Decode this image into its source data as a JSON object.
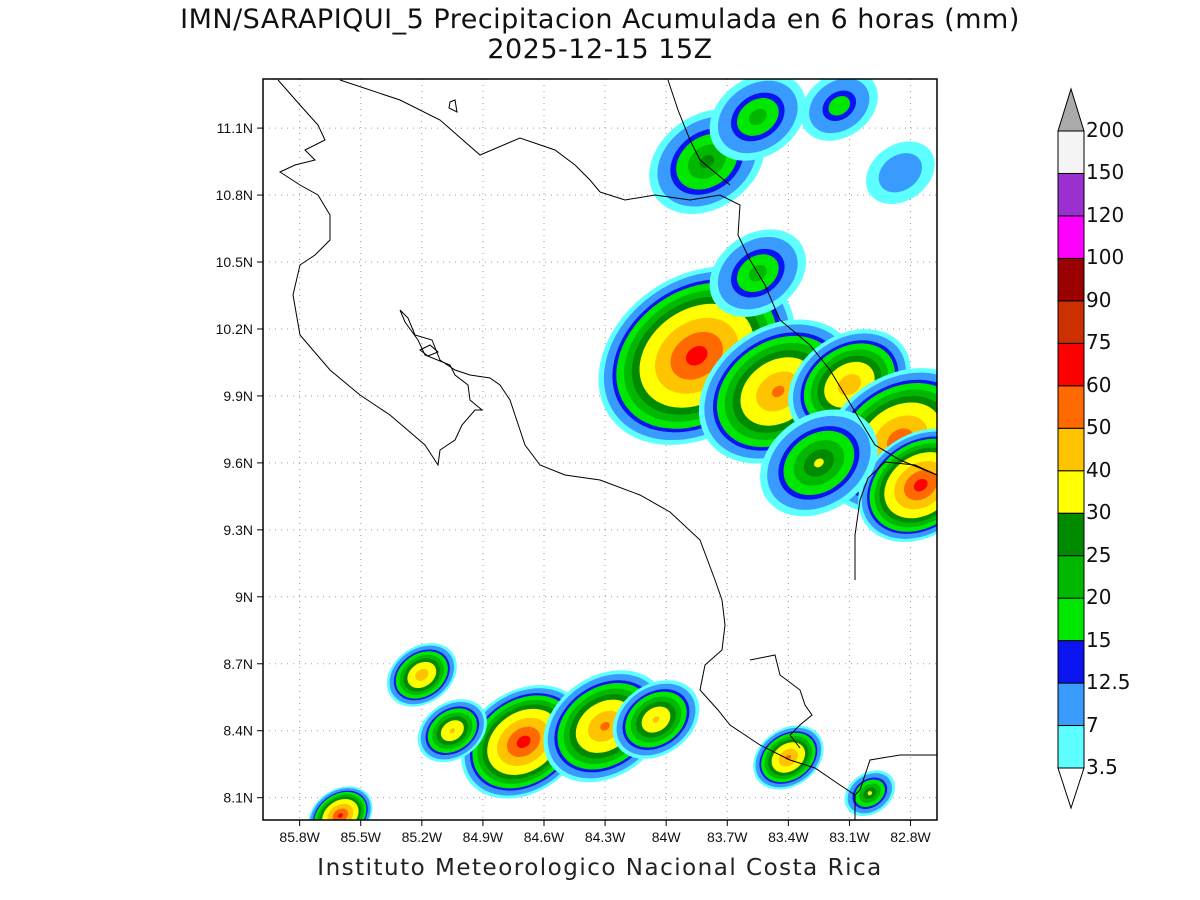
{
  "title": {
    "line1": "IMN/SARAPIQUI_5 Precipitacion Acumulada en 6 horas (mm)",
    "line2": "2025-12-15 15Z"
  },
  "footer": "Instituto Meteorologico Nacional Costa Rica",
  "map": {
    "lon_range": [
      -85.98,
      -82.67
    ],
    "lat_range": [
      8.0,
      11.32
    ],
    "x_ticks": [
      "85.8W",
      "85.5W",
      "85.2W",
      "84.9W",
      "84.6W",
      "84.3W",
      "84W",
      "83.7W",
      "83.4W",
      "83.1W",
      "82.8W"
    ],
    "x_tick_values": [
      -85.8,
      -85.5,
      -85.2,
      -84.9,
      -84.6,
      -84.3,
      -84.0,
      -83.7,
      -83.4,
      -83.1,
      -82.8
    ],
    "y_ticks": [
      "8.1N",
      "8.4N",
      "8.7N",
      "9N",
      "9.3N",
      "9.6N",
      "9.9N",
      "10.2N",
      "10.5N",
      "10.8N",
      "11.1N"
    ],
    "y_tick_values": [
      8.1,
      8.4,
      8.7,
      9.0,
      9.3,
      9.6,
      9.9,
      10.2,
      10.5,
      10.8,
      11.1
    ],
    "grid": true
  },
  "colorbar": {
    "levels": [
      "3.5",
      "7",
      "12.5",
      "15",
      "20",
      "25",
      "30",
      "40",
      "50",
      "60",
      "75",
      "90",
      "100",
      "120",
      "150",
      "200"
    ],
    "colors": [
      "#5effff",
      "#3a9bff",
      "#0a14f0",
      "#00e800",
      "#00b800",
      "#008a00",
      "#ffff00",
      "#ffc400",
      "#ff6a00",
      "#ff0000",
      "#cc3000",
      "#9a0000",
      "#ff00ff",
      "#9a30d0",
      "#f4f4f4"
    ],
    "over_color": "#aaaaaa",
    "under_color": "#ffffff"
  },
  "rain_cells": [
    {
      "lon": -83.85,
      "lat": 10.08,
      "r": 0.55,
      "peak": 62
    },
    {
      "lon": -83.45,
      "lat": 9.92,
      "r": 0.45,
      "peak": 50
    },
    {
      "lon": -83.1,
      "lat": 9.95,
      "r": 0.35,
      "peak": 45
    },
    {
      "lon": -82.85,
      "lat": 9.7,
      "r": 0.45,
      "peak": 55
    },
    {
      "lon": -82.75,
      "lat": 9.5,
      "r": 0.35,
      "peak": 62
    },
    {
      "lon": -83.25,
      "lat": 9.6,
      "r": 0.35,
      "peak": 30
    },
    {
      "lon": -83.55,
      "lat": 10.45,
      "r": 0.3,
      "peak": 22
    },
    {
      "lon": -83.8,
      "lat": 10.95,
      "r": 0.35,
      "peak": 26
    },
    {
      "lon": -83.55,
      "lat": 11.15,
      "r": 0.3,
      "peak": 22
    },
    {
      "lon": -83.15,
      "lat": 11.2,
      "r": 0.25,
      "peak": 18
    },
    {
      "lon": -82.85,
      "lat": 10.9,
      "r": 0.25,
      "peak": 12
    },
    {
      "lon": -84.7,
      "lat": 8.35,
      "r": 0.35,
      "peak": 62
    },
    {
      "lon": -84.3,
      "lat": 8.42,
      "r": 0.35,
      "peak": 50
    },
    {
      "lon": -84.05,
      "lat": 8.45,
      "r": 0.25,
      "peak": 40
    },
    {
      "lon": -85.05,
      "lat": 8.4,
      "r": 0.2,
      "peak": 40
    },
    {
      "lon": -85.2,
      "lat": 8.65,
      "r": 0.2,
      "peak": 45
    },
    {
      "lon": -83.4,
      "lat": 8.28,
      "r": 0.2,
      "peak": 50
    },
    {
      "lon": -83.0,
      "lat": 8.12,
      "r": 0.15,
      "peak": 30
    },
    {
      "lon": -85.6,
      "lat": 8.02,
      "r": 0.18,
      "peak": 60
    }
  ]
}
